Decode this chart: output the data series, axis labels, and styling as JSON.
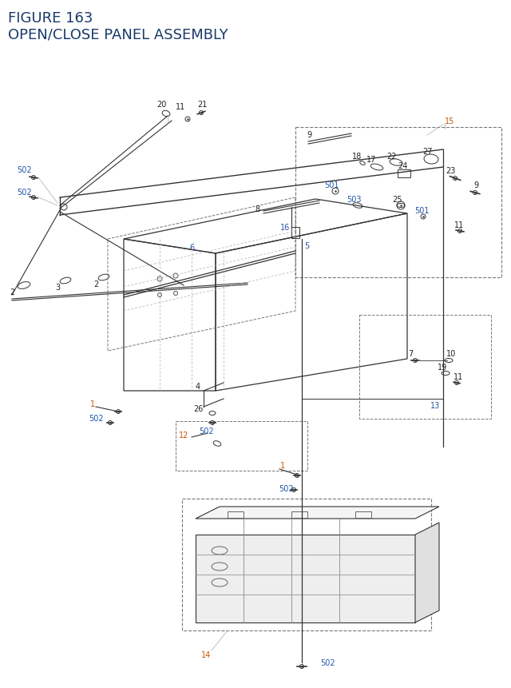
{
  "title_line1": "FIGURE 163",
  "title_line2": "OPEN/CLOSE PANEL ASSEMBLY",
  "title_color": "#1a3a6b",
  "title_fontsize": 13,
  "background_color": "#ffffff",
  "figsize": [
    6.4,
    8.62
  ],
  "dpi": 100,
  "lc": "#333333",
  "dc": "#777777",
  "black_label": "#222222",
  "orange_label": "#cc5500",
  "blue_label": "#2255aa"
}
